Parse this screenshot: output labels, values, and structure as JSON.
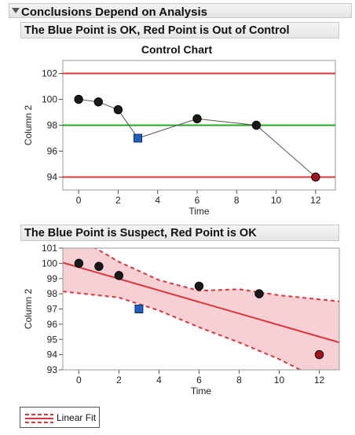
{
  "header": {
    "title": "Conclusions Depend on Analysis"
  },
  "sections": [
    {
      "title": "The Blue Point is OK, Red Point is Out of Control"
    },
    {
      "title": "The Blue Point is Suspect, Red Point is OK"
    }
  ],
  "legend": {
    "label": "Linear Fit"
  },
  "colors": {
    "red_line": "#d9373c",
    "green_line": "#22a822",
    "point_black": "#1a1a1a",
    "point_blue": "#1f5fbf",
    "point_red": "#a3121f",
    "band_fill": "#f6d0d4"
  },
  "chart_data": [
    {
      "type": "line",
      "title": "Control Chart",
      "xlabel": "Time",
      "ylabel": "Column 2",
      "xlim": [
        -0.8,
        13
      ],
      "ylim": [
        93,
        103
      ],
      "xticks": [
        0,
        2,
        4,
        6,
        8,
        10,
        12
      ],
      "yticks": [
        94,
        96,
        98,
        100,
        102
      ],
      "points": [
        {
          "x": 0,
          "y": 100,
          "marker": "black"
        },
        {
          "x": 1,
          "y": 99.8,
          "marker": "black"
        },
        {
          "x": 2,
          "y": 99.2,
          "marker": "black"
        },
        {
          "x": 3,
          "y": 97,
          "marker": "blue"
        },
        {
          "x": 6,
          "y": 98.5,
          "marker": "black"
        },
        {
          "x": 9,
          "y": 98,
          "marker": "black"
        },
        {
          "x": 12,
          "y": 94,
          "marker": "red"
        }
      ],
      "ucl": 102,
      "center": 98,
      "lcl": 94
    },
    {
      "type": "scatter",
      "title": "",
      "xlabel": "Time",
      "ylabel": "Column 2",
      "xlim": [
        -0.8,
        13
      ],
      "ylim": [
        93,
        101
      ],
      "xticks": [
        0,
        2,
        4,
        6,
        8,
        10,
        12
      ],
      "yticks": [
        93,
        94,
        95,
        96,
        97,
        98,
        99,
        100,
        101
      ],
      "points": [
        {
          "x": 0,
          "y": 100,
          "marker": "black"
        },
        {
          "x": 1,
          "y": 99.8,
          "marker": "black"
        },
        {
          "x": 2,
          "y": 99.2,
          "marker": "black"
        },
        {
          "x": 3,
          "y": 97,
          "marker": "blue"
        },
        {
          "x": 6,
          "y": 98.5,
          "marker": "black"
        },
        {
          "x": 9,
          "y": 98,
          "marker": "black"
        },
        {
          "x": 12,
          "y": 94,
          "marker": "red"
        }
      ],
      "fit": {
        "intercept": 99.74,
        "slope": -0.38
      },
      "band_upper": [
        {
          "x": -0.8,
          "y": 102.25
        },
        {
          "x": 2,
          "y": 100.1
        },
        {
          "x": 4,
          "y": 98.9
        },
        {
          "x": 6,
          "y": 98.2
        },
        {
          "x": 8,
          "y": 98.3
        },
        {
          "x": 10,
          "y": 97.9
        },
        {
          "x": 13,
          "y": 97.5
        }
      ],
      "band_lower": [
        {
          "x": -0.8,
          "y": 98.15
        },
        {
          "x": 2,
          "y": 97.75
        },
        {
          "x": 4,
          "y": 96.9
        },
        {
          "x": 6,
          "y": 95.8
        },
        {
          "x": 8,
          "y": 94.8
        },
        {
          "x": 10,
          "y": 93.7
        },
        {
          "x": 13,
          "y": 91.7
        }
      ]
    }
  ]
}
